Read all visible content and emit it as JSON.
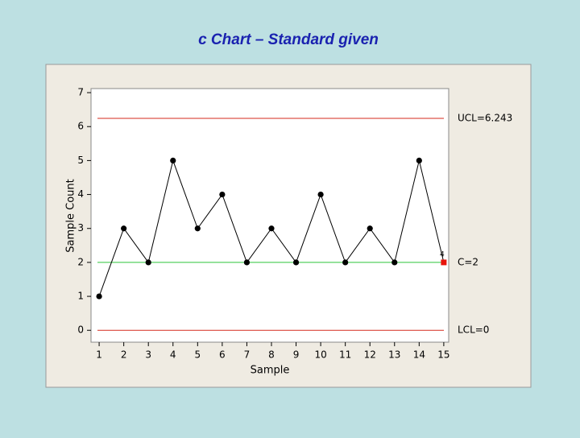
{
  "chart_data": {
    "type": "line",
    "title": "c Chart – Standard given",
    "x_label": "Sample",
    "y_label": "Sample Count",
    "x": [
      1,
      2,
      3,
      4,
      5,
      6,
      7,
      8,
      9,
      10,
      11,
      12,
      13,
      14,
      15
    ],
    "series": [
      {
        "name": "Sample Count",
        "color": "#000000",
        "values": [
          1,
          3,
          2,
          5,
          3,
          4,
          2,
          3,
          2,
          4,
          2,
          3,
          2,
          5,
          2
        ],
        "marker_colors": [
          "#000000",
          "#000000",
          "#000000",
          "#000000",
          "#000000",
          "#000000",
          "#000000",
          "#000000",
          "#000000",
          "#000000",
          "#000000",
          "#000000",
          "#000000",
          "#000000",
          "#e8140c"
        ]
      }
    ],
    "control_lines": [
      {
        "label": "UCL=6.243",
        "value": 6.243,
        "color": "#d62a1e"
      },
      {
        "label": "C=2",
        "value": 2,
        "color": "#2ec43a"
      },
      {
        "label": "LCL=0",
        "value": 0,
        "color": "#d62a1e"
      }
    ],
    "annotations": [
      {
        "text": "4",
        "x": 15,
        "y": 2
      }
    ],
    "xlim": [
      0.67,
      15.2
    ],
    "xticks": [
      1,
      2,
      3,
      4,
      5,
      6,
      7,
      8,
      9,
      10,
      11,
      12,
      13,
      14,
      15
    ],
    "ylim": [
      -0.35,
      7.12
    ],
    "yticks": [
      0,
      1,
      2,
      3,
      4,
      5,
      6,
      7
    ]
  }
}
